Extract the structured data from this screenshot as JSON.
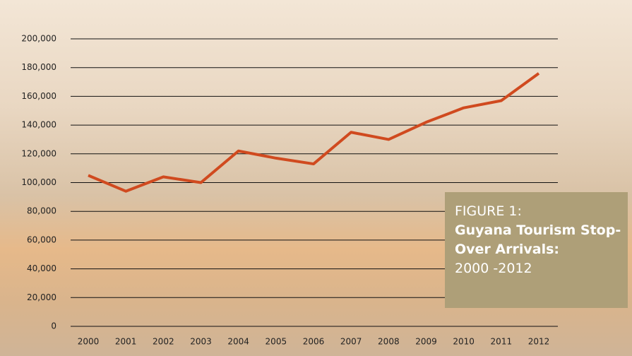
{
  "chart_data": {
    "type": "line",
    "figure_label": "FIGURE 1:",
    "title": "Guyana Tourism Stop-Over Arrivals:",
    "subtitle": "2000 -2012",
    "categories": [
      "2000",
      "2001",
      "2002",
      "2003",
      "2004",
      "2005",
      "2006",
      "2007",
      "2008",
      "2009",
      "2010",
      "2011",
      "2012"
    ],
    "values": [
      105000,
      94000,
      104000,
      100000,
      122000,
      117000,
      113000,
      135000,
      130000,
      142000,
      152000,
      157000,
      176000
    ],
    "color": "#d04a1f",
    "ylim": [
      0,
      200000
    ],
    "yticks": [
      0,
      {
        "value": 20000,
        "label": "20,000"
      },
      {
        "value": 40000,
        "label": "40,000"
      },
      {
        "value": 60000,
        "label": "60,000"
      },
      {
        "value": 80000,
        "label": "80,000"
      },
      {
        "value": 100000,
        "label": "100,000"
      },
      {
        "value": 120000,
        "label": "120,000"
      },
      {
        "value": 140000,
        "label": "140,000"
      },
      {
        "value": 160000,
        "label": "160,000"
      },
      {
        "value": 180000,
        "label": "180,000"
      },
      {
        "value": 200000,
        "label": "200,000"
      }
    ],
    "grid": true
  }
}
